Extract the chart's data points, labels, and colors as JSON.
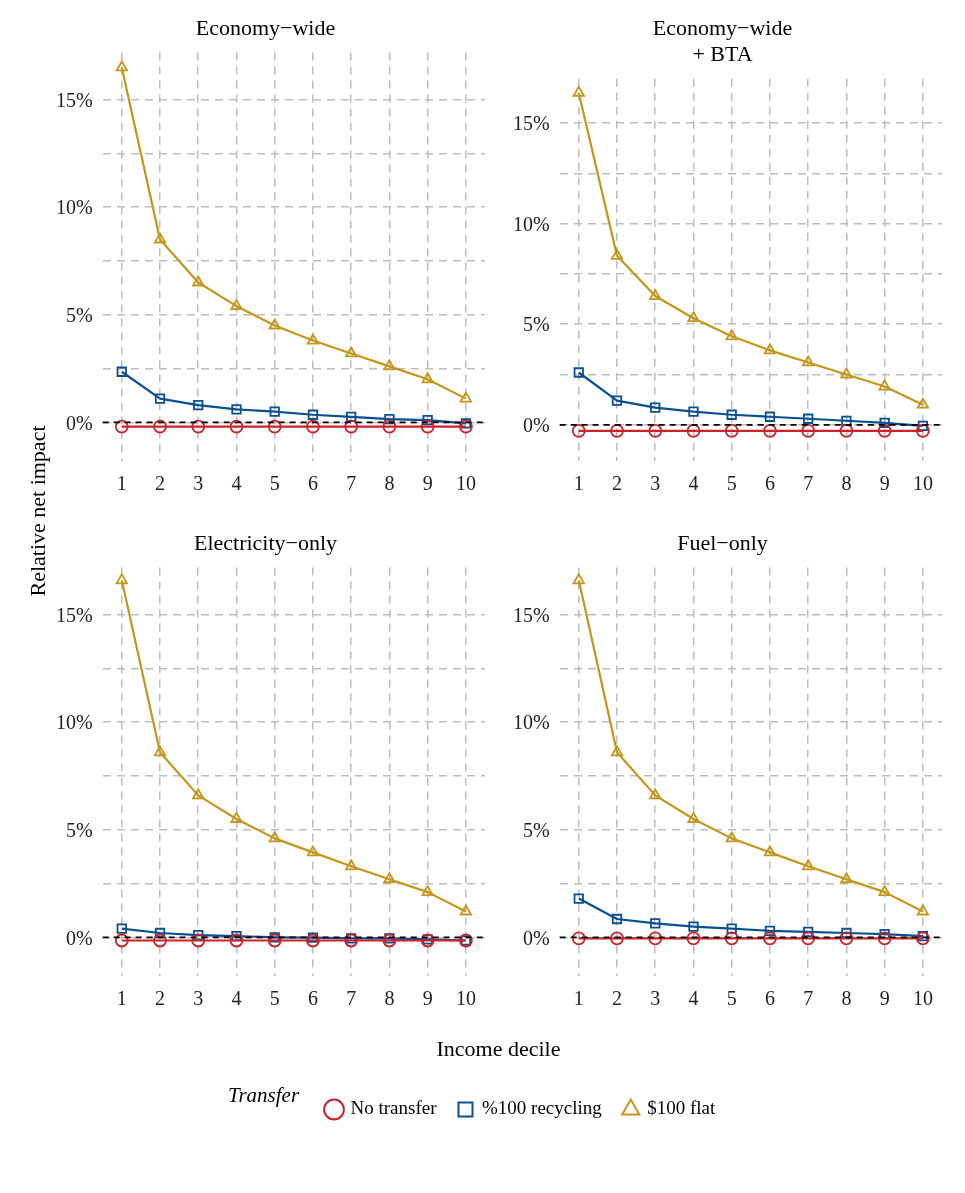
{
  "chart_data": [
    {
      "type": "line",
      "title": "Economy−wide",
      "xlabel": "Income decile",
      "ylabel": "Relative net impact",
      "legend_title": "Transfer",
      "legend": "bottom",
      "grid": true,
      "categories": [
        "1",
        "2",
        "3",
        "4",
        "5",
        "6",
        "7",
        "8",
        "9",
        "10"
      ],
      "ylim": [
        -1.8,
        17.2
      ],
      "yticks": [
        {
          "value": 0,
          "label": "0%"
        },
        {
          "value": 2.5,
          "label": null
        },
        {
          "value": 5,
          "label": "5%"
        },
        {
          "value": 7.5,
          "label": null
        },
        {
          "value": 10,
          "label": "10%"
        },
        {
          "value": 12.5,
          "label": null
        },
        {
          "value": 15,
          "label": "15%"
        }
      ],
      "ref_lines": [
        {
          "axis": "y",
          "value": 0,
          "color": "#000000",
          "line_style": "dashed"
        }
      ],
      "series": [
        {
          "name": "No transfer",
          "color": "#cc2229",
          "marker": "circle",
          "values": [
            -0.2,
            -0.2,
            -0.2,
            -0.2,
            -0.2,
            -0.2,
            -0.2,
            -0.2,
            -0.2,
            -0.2
          ]
        },
        {
          "name": "%100 recycling",
          "color": "#0a4f8f",
          "marker": "square",
          "values": [
            2.35,
            1.1,
            0.8,
            0.6,
            0.5,
            0.35,
            0.25,
            0.15,
            0.1,
            -0.05
          ]
        },
        {
          "name": "$100 flat",
          "color": "#c4961a",
          "marker": "triangle",
          "values": [
            16.5,
            8.5,
            6.5,
            5.4,
            4.5,
            3.8,
            3.2,
            2.6,
            2.0,
            1.1
          ]
        }
      ]
    },
    {
      "type": "line",
      "title": "Economy−wide\n+ BTA",
      "grid": true,
      "categories": [
        "1",
        "2",
        "3",
        "4",
        "5",
        "6",
        "7",
        "8",
        "9",
        "10"
      ],
      "ylim": [
        -1.8,
        17.2
      ],
      "yticks": [
        {
          "value": 0,
          "label": "0%"
        },
        {
          "value": 2.5,
          "label": null
        },
        {
          "value": 5,
          "label": "5%"
        },
        {
          "value": 7.5,
          "label": null
        },
        {
          "value": 10,
          "label": "10%"
        },
        {
          "value": 12.5,
          "label": null
        },
        {
          "value": 15,
          "label": "15%"
        }
      ],
      "ref_lines": [
        {
          "axis": "y",
          "value": 0,
          "color": "#000000",
          "line_style": "dashed"
        }
      ],
      "series": [
        {
          "color": "#cc2229",
          "marker": "circle",
          "values": [
            -0.3,
            -0.3,
            -0.3,
            -0.3,
            -0.3,
            -0.3,
            -0.3,
            -0.3,
            -0.3,
            -0.3
          ]
        },
        {
          "color": "#0a4f8f",
          "marker": "square",
          "values": [
            2.6,
            1.2,
            0.85,
            0.65,
            0.5,
            0.4,
            0.3,
            0.2,
            0.1,
            -0.05
          ]
        },
        {
          "color": "#c4961a",
          "marker": "triangle",
          "values": [
            16.5,
            8.4,
            6.4,
            5.3,
            4.4,
            3.7,
            3.1,
            2.5,
            1.9,
            1.0
          ]
        }
      ]
    },
    {
      "type": "line",
      "title": "Electricity−only",
      "grid": true,
      "categories": [
        "1",
        "2",
        "3",
        "4",
        "5",
        "6",
        "7",
        "8",
        "9",
        "10"
      ],
      "ylim": [
        -1.8,
        17.2
      ],
      "yticks": [
        {
          "value": 0,
          "label": "0%"
        },
        {
          "value": 2.5,
          "label": null
        },
        {
          "value": 5,
          "label": "5%"
        },
        {
          "value": 7.5,
          "label": null
        },
        {
          "value": 10,
          "label": "10%"
        },
        {
          "value": 12.5,
          "label": null
        },
        {
          "value": 15,
          "label": "15%"
        }
      ],
      "ref_lines": [
        {
          "axis": "y",
          "value": 0,
          "color": "#000000",
          "line_style": "dashed"
        }
      ],
      "series": [
        {
          "color": "#cc2229",
          "marker": "circle",
          "values": [
            -0.15,
            -0.15,
            -0.15,
            -0.15,
            -0.15,
            -0.15,
            -0.15,
            -0.15,
            -0.15,
            -0.15
          ]
        },
        {
          "color": "#0a4f8f",
          "marker": "square",
          "values": [
            0.4,
            0.2,
            0.1,
            0.05,
            0.0,
            -0.02,
            -0.05,
            -0.05,
            -0.1,
            -0.15
          ]
        },
        {
          "color": "#c4961a",
          "marker": "triangle",
          "values": [
            16.6,
            8.6,
            6.6,
            5.5,
            4.6,
            3.95,
            3.3,
            2.7,
            2.1,
            1.2
          ]
        }
      ]
    },
    {
      "type": "line",
      "title": "Fuel−only",
      "grid": true,
      "categories": [
        "1",
        "2",
        "3",
        "4",
        "5",
        "6",
        "7",
        "8",
        "9",
        "10"
      ],
      "ylim": [
        -1.8,
        17.2
      ],
      "yticks": [
        {
          "value": 0,
          "label": "0%"
        },
        {
          "value": 2.5,
          "label": null
        },
        {
          "value": 5,
          "label": "5%"
        },
        {
          "value": 7.5,
          "label": null
        },
        {
          "value": 10,
          "label": "10%"
        },
        {
          "value": 12.5,
          "label": null
        },
        {
          "value": 15,
          "label": "15%"
        }
      ],
      "ref_lines": [
        {
          "axis": "y",
          "value": 0,
          "color": "#000000",
          "line_style": "dashed"
        }
      ],
      "series": [
        {
          "color": "#cc2229",
          "marker": "circle",
          "values": [
            -0.05,
            -0.05,
            -0.05,
            -0.05,
            -0.05,
            -0.05,
            -0.05,
            -0.05,
            -0.05,
            -0.05
          ]
        },
        {
          "color": "#0a4f8f",
          "marker": "square",
          "values": [
            1.8,
            0.85,
            0.65,
            0.5,
            0.4,
            0.3,
            0.25,
            0.2,
            0.15,
            0.05
          ]
        },
        {
          "color": "#c4961a",
          "marker": "triangle",
          "values": [
            16.6,
            8.6,
            6.6,
            5.5,
            4.6,
            3.95,
            3.3,
            2.7,
            2.1,
            1.2
          ]
        }
      ]
    }
  ]
}
